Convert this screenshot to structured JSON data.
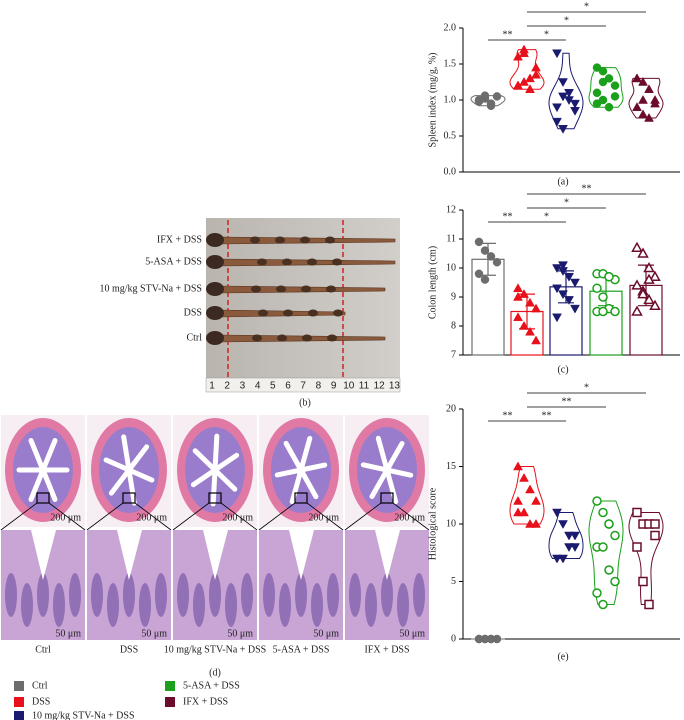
{
  "chart_data": [
    {
      "type": "violin",
      "panel_label": "(a)",
      "y_label": "Spleen index (mg/g, %)",
      "ylim": [
        0,
        2
      ],
      "yticks": [
        {
          "value": 0,
          "label": "0.0"
        },
        {
          "value": 0.5,
          "label": "0.5"
        },
        {
          "value": 1,
          "label": "1.0"
        },
        {
          "value": 1.5,
          "label": "1.5"
        },
        {
          "value": 2,
          "label": "2.0"
        }
      ],
      "series": [
        {
          "name": "Ctrl",
          "color": "#6d6d6d",
          "marker": "circle",
          "values": [
            1.0,
            1.02,
            0.95,
            1.05,
            0.98,
            1.06,
            0.92
          ]
        },
        {
          "name": "DSS",
          "color": "#e8101a",
          "marker": "triangle",
          "values": [
            1.2,
            1.25,
            1.3,
            1.45,
            1.6,
            1.7,
            1.15,
            1.35,
            1.2,
            1.65
          ]
        },
        {
          "name": "10 mg/kg STV-Na + DSS",
          "color": "#1a1a6e",
          "marker": "triangle-down",
          "values": [
            1.65,
            1.25,
            1.0,
            0.95,
            0.7,
            0.6,
            1.1,
            0.85,
            0.9,
            1.05
          ]
        },
        {
          "name": "5-ASA + DSS",
          "color": "#1aa01a",
          "marker": "circle",
          "values": [
            1.45,
            1.4,
            1.3,
            1.2,
            1.1,
            1.0,
            0.9,
            1.05,
            0.95,
            1.25
          ]
        },
        {
          "name": "IFX + DSS",
          "color": "#6b0d2a",
          "marker": "triangle",
          "values": [
            1.3,
            1.25,
            1.15,
            1.0,
            0.9,
            0.8,
            0.75,
            0.95,
            1.3,
            1.0
          ]
        }
      ],
      "brackets": [
        {
          "text": "**",
          "from": 0,
          "to": 1
        },
        {
          "text": "*",
          "from": 1,
          "to": 2
        },
        {
          "text": "*",
          "from": 1,
          "to": 3
        },
        {
          "text": "*",
          "from": 1,
          "to": 4
        }
      ]
    },
    {
      "type": "bar",
      "panel_label": "(c)",
      "y_label": "Colon length (cm)",
      "ylim": [
        7,
        12
      ],
      "yticks": [
        7,
        8,
        9,
        10,
        11,
        12
      ],
      "series": [
        {
          "color": "#6d6d6d",
          "marker": "circle",
          "mean": 10.3,
          "sd": 0.55,
          "values": [
            10.9,
            10.6,
            10.4,
            10.2,
            9.8,
            9.6
          ]
        },
        {
          "color": "#e8101a",
          "marker": "triangle",
          "mean": 8.5,
          "sd": 0.6,
          "values": [
            9.3,
            9.1,
            8.8,
            8.6,
            8.3,
            8.0,
            7.8,
            7.5,
            9.0
          ]
        },
        {
          "color": "#1a1a6e",
          "marker": "triangle-down",
          "mean": 9.35,
          "sd": 0.55,
          "values": [
            10.0,
            9.9,
            9.7,
            9.5,
            9.3,
            9.1,
            8.9,
            8.6,
            8.3,
            10.1
          ]
        },
        {
          "color": "#1aa01a",
          "marker": "circle",
          "open": true,
          "mean": 9.2,
          "sd": 0.5,
          "values": [
            9.8,
            9.8,
            9.7,
            9.6,
            9.3,
            9.0,
            8.6,
            8.5,
            8.5,
            8.5,
            9.7
          ]
        },
        {
          "color": "#6b0d2a",
          "marker": "triangle",
          "open": true,
          "mean": 9.4,
          "sd": 0.7,
          "values": [
            10.7,
            10.5,
            10.0,
            9.7,
            9.4,
            9.2,
            8.9,
            8.7,
            8.5,
            9.1,
            9.6
          ]
        }
      ],
      "brackets": [
        {
          "text": "**",
          "from": 0,
          "to": 1
        },
        {
          "text": "*",
          "from": 1,
          "to": 2
        },
        {
          "text": "*",
          "from": 1,
          "to": 3
        },
        {
          "text": "**",
          "from": 1,
          "to": 4
        }
      ]
    },
    {
      "type": "violin",
      "panel_label": "(e)",
      "y_label": "Histological score",
      "ylim": [
        0,
        20
      ],
      "yticks": [
        0,
        5,
        10,
        15,
        20
      ],
      "series": [
        {
          "color": "#6d6d6d",
          "marker": "circle",
          "values": [
            0,
            0,
            0,
            0,
            0,
            0,
            0
          ]
        },
        {
          "color": "#e8101a",
          "marker": "triangle",
          "values": [
            15,
            14,
            13,
            12,
            11,
            11,
            10,
            10,
            12
          ]
        },
        {
          "color": "#1a1a6e",
          "marker": "triangle-down",
          "values": [
            11,
            10,
            9,
            8,
            7,
            7,
            8,
            9
          ]
        },
        {
          "color": "#1aa01a",
          "marker": "circle",
          "open": true,
          "values": [
            12,
            11,
            10,
            9,
            8,
            8,
            6,
            5,
            4,
            3,
            10
          ]
        },
        {
          "color": "#6b0d2a",
          "marker": "square",
          "open": true,
          "values": [
            11,
            10,
            10,
            9,
            8,
            5,
            3,
            10
          ]
        }
      ],
      "brackets": [
        {
          "text": "**",
          "from": 0,
          "to": 1
        },
        {
          "text": "**",
          "from": 1,
          "to": 2
        },
        {
          "text": "**",
          "from": 1,
          "to": 3
        },
        {
          "text": "*",
          "from": 1,
          "to": 4
        }
      ]
    }
  ],
  "photo_b": {
    "panel_label": "(b)",
    "rows": [
      "IFX + DSS",
      "5-ASA + DSS",
      "10 mg/kg STV-Na + DSS",
      "DSS",
      "Ctrl"
    ],
    "ruler": [
      1,
      2,
      3,
      4,
      5,
      6,
      7,
      8,
      9,
      10,
      11,
      12,
      13
    ]
  },
  "photo_d": {
    "panel_label": "(d)",
    "panels": [
      {
        "label": "Ctrl",
        "scale_top": "200 μm",
        "scale_bottom": "50 μm"
      },
      {
        "label": "DSS",
        "scale_top": "200 μm",
        "scale_bottom": "50 μm"
      },
      {
        "label": "10 mg/kg STV-Na + DSS",
        "scale_top": "200 μm",
        "scale_bottom": "50 μm"
      },
      {
        "label": "5-ASA + DSS",
        "scale_top": "200 μm",
        "scale_bottom": "50 μm"
      },
      {
        "label": "IFX + DSS",
        "scale_top": "200 μm",
        "scale_bottom": "50 μm"
      }
    ]
  }
}
